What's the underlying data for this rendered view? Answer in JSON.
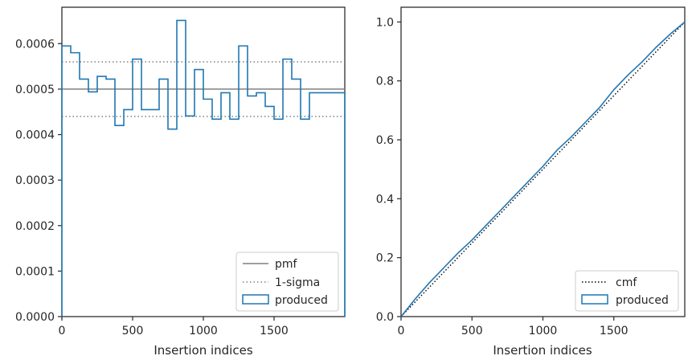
{
  "chart_data": [
    {
      "type": "histogram-step",
      "xlabel": "Insertion indices",
      "ylabel": "",
      "xlim": [
        0,
        2000
      ],
      "ylim": [
        0,
        0.00068
      ],
      "xticks": [
        0,
        500,
        1000,
        1500
      ],
      "xtick_labels": [
        "0",
        "500",
        "1000",
        "1500"
      ],
      "yticks": [
        0,
        0.0001,
        0.0002,
        0.0003,
        0.0004,
        0.0005,
        0.0006
      ],
      "ytick_labels": [
        "0.0000",
        "0.0001",
        "0.0002",
        "0.0003",
        "0.0004",
        "0.0005",
        "0.0006"
      ],
      "bin_edges": [
        0,
        62.5,
        125,
        187.5,
        250,
        312.5,
        375,
        437.5,
        500,
        562.5,
        625,
        687.5,
        750,
        812.5,
        875,
        937.5,
        1000,
        1062.5,
        1125,
        1187.5,
        1250,
        1312.5,
        1375,
        1437.5,
        1500,
        1562.5,
        1625,
        1687.5,
        1750,
        1812.5,
        1875,
        1937.5,
        2000
      ],
      "series": [
        {
          "name": "produced",
          "kind": "step",
          "color": "#1f77b4",
          "values": [
            0.000595,
            0.00058,
            0.000522,
            0.000494,
            0.000528,
            0.000522,
            0.00042,
            0.000455,
            0.000566,
            0.000455,
            0.000455,
            0.000522,
            0.000412,
            0.000651,
            0.000441,
            0.000543,
            0.000478,
            0.000434,
            0.000492,
            0.000434,
            0.000595,
            0.000485,
            0.000492,
            0.000462,
            0.000434,
            0.000566,
            0.000522,
            0.000434,
            0.000492,
            0.000492,
            0.000492,
            0.000492
          ]
        },
        {
          "name": "pmf",
          "kind": "hline",
          "color": "#808080",
          "value": 0.0005
        },
        {
          "name": "1-sigma",
          "kind": "hline-dotted",
          "color": "#808080",
          "values": [
            0.00044,
            0.00056
          ]
        }
      ],
      "legend": {
        "placement": "lower-right",
        "entries": [
          "pmf",
          "1-sigma",
          "produced"
        ]
      }
    },
    {
      "type": "line",
      "xlabel": "Insertion indices",
      "ylabel": "",
      "xlim": [
        0,
        2000
      ],
      "ylim": [
        0,
        1.05
      ],
      "xticks": [
        0,
        500,
        1000,
        1500
      ],
      "xtick_labels": [
        "0",
        "500",
        "1000",
        "1500"
      ],
      "yticks": [
        0,
        0.2,
        0.4,
        0.6,
        0.8,
        1.0
      ],
      "ytick_labels": [
        "0.0",
        "0.2",
        "0.4",
        "0.6",
        "0.8",
        "1.0"
      ],
      "series": [
        {
          "name": "cmf",
          "kind": "dotted-line",
          "color": "#000000",
          "x": [
            0,
            2000
          ],
          "y": [
            0,
            1.0
          ]
        },
        {
          "name": "produced",
          "kind": "step-cumulative",
          "color": "#1f77b4",
          "x": [
            0,
            100,
            200,
            300,
            400,
            500,
            600,
            700,
            800,
            900,
            1000,
            1100,
            1200,
            1300,
            1400,
            1500,
            1600,
            1700,
            1800,
            1900,
            2000
          ],
          "y": [
            0,
            0.06,
            0.115,
            0.165,
            0.215,
            0.26,
            0.31,
            0.36,
            0.41,
            0.46,
            0.51,
            0.565,
            0.61,
            0.66,
            0.71,
            0.77,
            0.82,
            0.865,
            0.915,
            0.96,
            1.0
          ]
        }
      ],
      "legend": {
        "placement": "lower-right",
        "entries": [
          "cmf",
          "produced"
        ]
      }
    }
  ]
}
